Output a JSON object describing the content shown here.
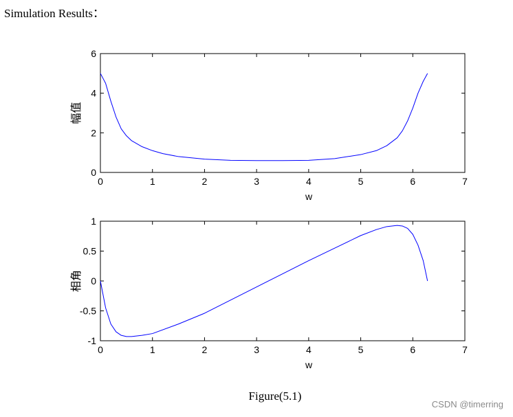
{
  "page": {
    "heading": "Simulation Results：",
    "caption": "Figure(5.1)",
    "watermark": "CSDN @timerring"
  },
  "chart_data": [
    {
      "type": "line",
      "title": "",
      "xlabel": "w",
      "ylabel": "幅值",
      "xlim": [
        0,
        7
      ],
      "ylim": [
        0,
        6
      ],
      "xticks": [
        "0",
        "1",
        "2",
        "3",
        "4",
        "5",
        "6",
        "7"
      ],
      "yticks": [
        "0",
        "2",
        "4",
        "6"
      ],
      "grid": false,
      "line_color": "#0000ff",
      "series": [
        {
          "x": [
            0,
            0.1,
            0.2,
            0.3,
            0.4,
            0.5,
            0.6,
            0.8,
            1.0,
            1.2,
            1.5,
            2.0,
            2.5,
            3.0,
            3.5,
            4.0,
            4.5,
            5.0,
            5.3,
            5.5,
            5.7,
            5.8,
            5.9,
            6.0,
            6.1,
            6.2,
            6.283
          ],
          "y": [
            5.0,
            4.5,
            3.6,
            2.8,
            2.2,
            1.85,
            1.6,
            1.3,
            1.1,
            0.95,
            0.8,
            0.67,
            0.61,
            0.6,
            0.6,
            0.61,
            0.7,
            0.9,
            1.1,
            1.35,
            1.75,
            2.1,
            2.6,
            3.25,
            4.0,
            4.6,
            5.0
          ]
        }
      ]
    },
    {
      "type": "line",
      "title": "",
      "xlabel": "w",
      "ylabel": "相角",
      "xlim": [
        0,
        7
      ],
      "ylim": [
        -1,
        1
      ],
      "xticks": [
        "0",
        "1",
        "2",
        "3",
        "4",
        "5",
        "6",
        "7"
      ],
      "yticks": [
        "-1",
        "-0.5",
        "0",
        "0.5",
        "1"
      ],
      "grid": false,
      "line_color": "#0000ff",
      "series": [
        {
          "x": [
            0,
            0.1,
            0.2,
            0.3,
            0.4,
            0.5,
            0.6,
            0.8,
            1.0,
            1.5,
            2.0,
            2.5,
            3.0,
            3.5,
            4.0,
            4.5,
            5.0,
            5.3,
            5.5,
            5.7,
            5.8,
            5.9,
            6.0,
            6.1,
            6.2,
            6.283
          ],
          "y": [
            0,
            -0.45,
            -0.72,
            -0.85,
            -0.91,
            -0.93,
            -0.93,
            -0.91,
            -0.88,
            -0.72,
            -0.54,
            -0.32,
            -0.1,
            0.12,
            0.34,
            0.55,
            0.76,
            0.86,
            0.91,
            0.93,
            0.92,
            0.88,
            0.78,
            0.6,
            0.34,
            0.0
          ]
        }
      ]
    }
  ]
}
